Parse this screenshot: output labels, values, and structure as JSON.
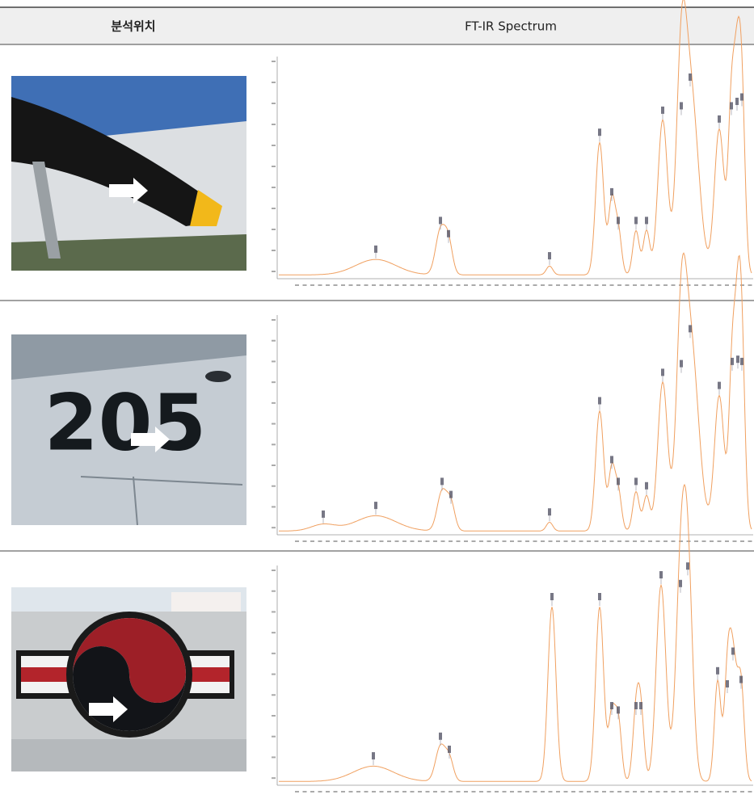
{
  "header": {
    "location": "분석위치",
    "spectrum": "FT-IR Spectrum"
  },
  "rows": [
    {
      "photo_text": null
    },
    {
      "photo_text": "205"
    },
    {
      "photo_text": null
    }
  ]
}
